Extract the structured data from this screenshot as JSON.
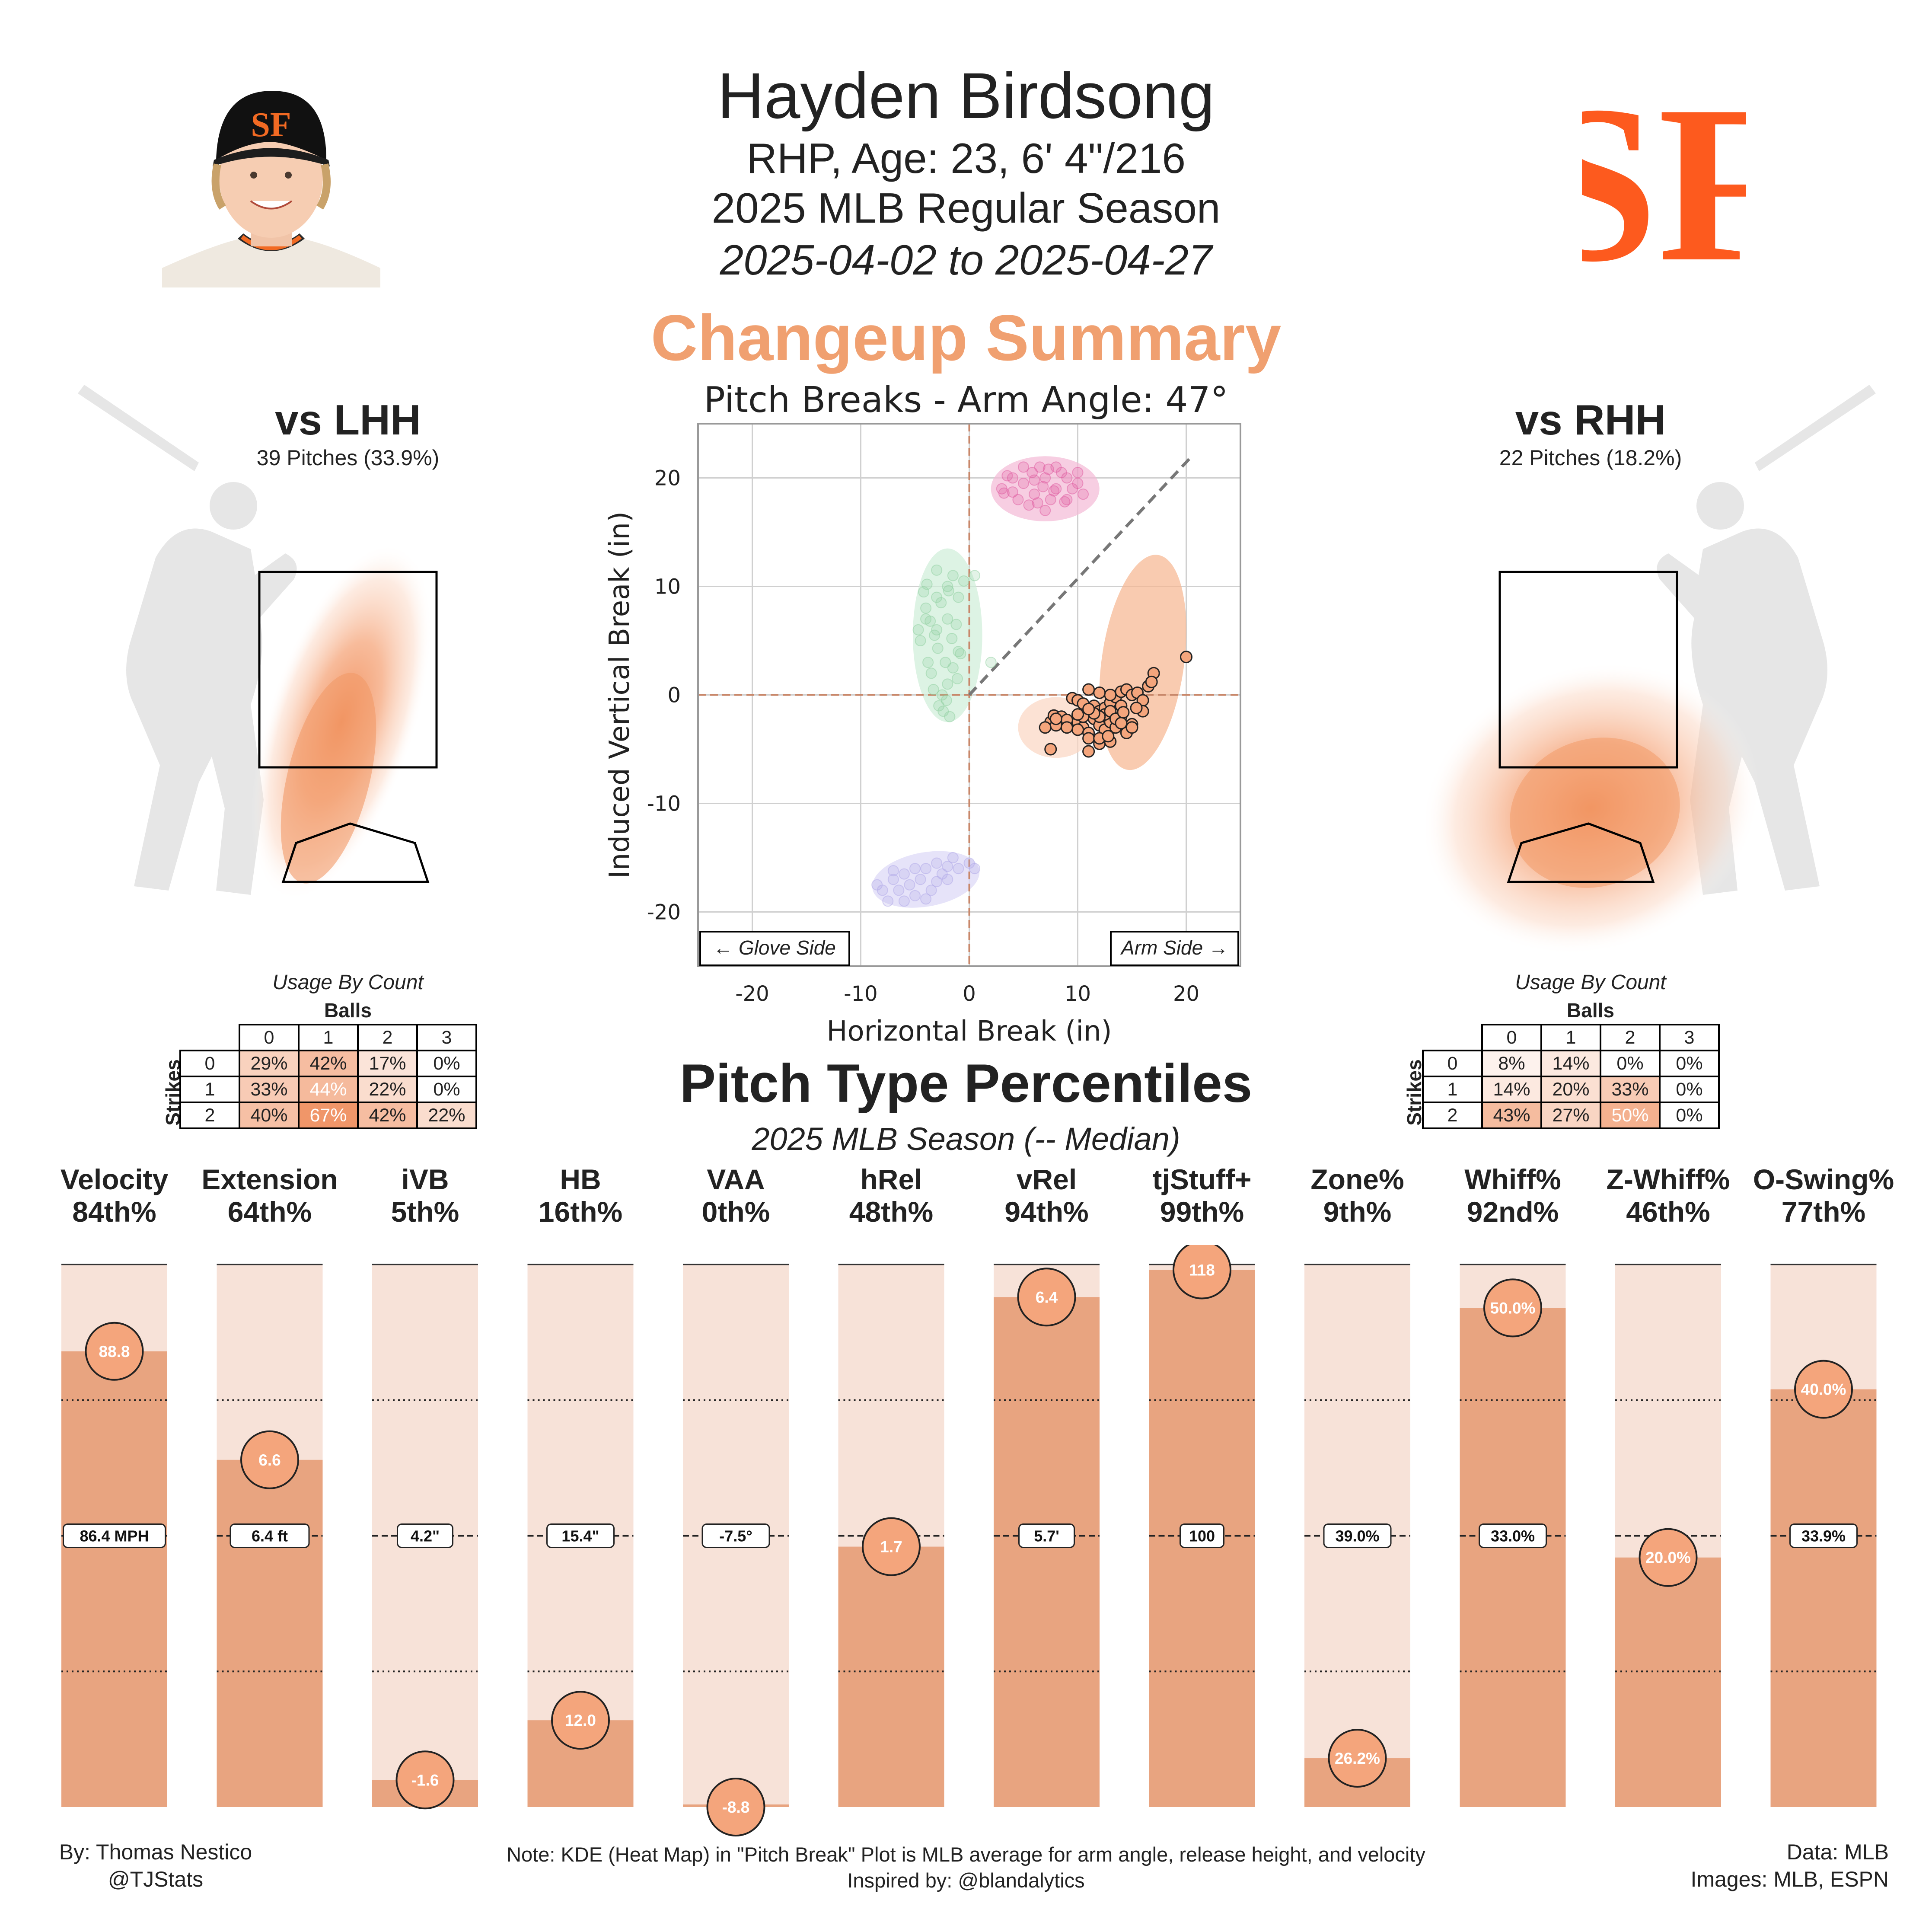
{
  "header": {
    "name": "Hayden Birdsong",
    "bio": "RHP, Age: 23, 6' 4\"/216",
    "season": "2025 MLB Regular Season",
    "date_range": "2025-04-02 to 2025-04-27",
    "team_logo_text": "SF"
  },
  "summary_title": "Changeup Summary",
  "colors": {
    "accent": "#f0a070",
    "bar_fill": "#e8a480",
    "bar_bg": "#f7e2d8",
    "marker": "#f4a57c",
    "silhouette": "#e6e6e6",
    "logo": "#fd5a1e"
  },
  "lhh": {
    "title": "vs LHH",
    "pitches": "39 Pitches (33.9%)",
    "usage_caption": "Usage By Count",
    "balls_label": "Balls",
    "strikes_label": "Strikes",
    "ball_headers": [
      "0",
      "1",
      "2",
      "3"
    ],
    "rows": [
      {
        "strikes": "0",
        "cells": [
          "29%",
          "42%",
          "17%",
          "0%"
        ],
        "vals": [
          29,
          42,
          17,
          0
        ]
      },
      {
        "strikes": "1",
        "cells": [
          "33%",
          "44%",
          "22%",
          "0%"
        ],
        "vals": [
          33,
          44,
          22,
          0
        ]
      },
      {
        "strikes": "2",
        "cells": [
          "40%",
          "67%",
          "42%",
          "22%"
        ],
        "vals": [
          40,
          67,
          42,
          22
        ]
      }
    ]
  },
  "rhh": {
    "title": "vs RHH",
    "pitches": "22 Pitches (18.2%)",
    "usage_caption": "Usage By Count",
    "balls_label": "Balls",
    "strikes_label": "Strikes",
    "ball_headers": [
      "0",
      "1",
      "2",
      "3"
    ],
    "rows": [
      {
        "strikes": "0",
        "cells": [
          "8%",
          "14%",
          "0%",
          "0%"
        ],
        "vals": [
          8,
          14,
          0,
          0
        ]
      },
      {
        "strikes": "1",
        "cells": [
          "14%",
          "20%",
          "33%",
          "0%"
        ],
        "vals": [
          14,
          20,
          33,
          0
        ]
      },
      {
        "strikes": "2",
        "cells": [
          "43%",
          "27%",
          "50%",
          "0%"
        ],
        "vals": [
          43,
          27,
          50,
          0
        ]
      }
    ]
  },
  "chart_data": [
    {
      "type": "scatter",
      "title": "Pitch Breaks - Arm Angle: 47°",
      "xlabel": "Horizontal Break (in)",
      "ylabel": "Induced Vertical Break (in)",
      "xlim": [
        -25,
        25
      ],
      "ylim": [
        -25,
        25
      ],
      "xticks": [
        -20,
        -10,
        0,
        10,
        20
      ],
      "yticks": [
        -20,
        -10,
        0,
        10,
        20
      ],
      "grid": true,
      "arm_angle_deg": 47,
      "glove_side_label": "← Glove Side",
      "arm_side_label": "Arm Side →",
      "series": [
        {
          "color": "#f4a57c",
          "highlight": true,
          "points": [
            [
              7.5,
              -2.5
            ],
            [
              8,
              -2.8
            ],
            [
              7,
              -3
            ],
            [
              7.8,
              -1.9
            ],
            [
              8.5,
              -2
            ],
            [
              9.5,
              -0.3
            ],
            [
              10,
              -0.5
            ],
            [
              10.5,
              -0.8
            ],
            [
              11,
              0.5
            ],
            [
              11.5,
              -1
            ],
            [
              12,
              -1.5
            ],
            [
              12.5,
              -1.2
            ],
            [
              13,
              -0.7
            ],
            [
              13.5,
              -0.2
            ],
            [
              14,
              0.3
            ],
            [
              14.5,
              0.5
            ],
            [
              15,
              0
            ],
            [
              15.5,
              0.2
            ],
            [
              16,
              -0.5
            ],
            [
              16.5,
              0.8
            ],
            [
              17,
              2
            ],
            [
              20,
              3.5
            ],
            [
              10,
              -2.5
            ],
            [
              10.5,
              -3
            ],
            [
              11,
              -3.5
            ],
            [
              11.5,
              -2.2
            ],
            [
              12,
              -2.8
            ],
            [
              12.5,
              -3.2
            ],
            [
              13,
              -2.5
            ],
            [
              13.5,
              -3
            ],
            [
              14,
              -2
            ],
            [
              14.5,
              -3.5
            ],
            [
              15,
              -2.7
            ],
            [
              11,
              -4
            ],
            [
              12,
              -4.5
            ],
            [
              10.5,
              -2
            ],
            [
              12.5,
              -1.8
            ],
            [
              13,
              -1.5
            ],
            [
              14,
              -1
            ],
            [
              7.5,
              -5
            ],
            [
              11,
              -5.2
            ],
            [
              12,
              -4
            ],
            [
              13,
              -4.3
            ],
            [
              12,
              -2
            ],
            [
              15,
              -3
            ],
            [
              16,
              -1.5
            ],
            [
              9,
              -2.3
            ],
            [
              11.5,
              -1.7
            ],
            [
              13.5,
              -2.2
            ],
            [
              14,
              -2.6
            ],
            [
              10,
              -3.2
            ],
            [
              12.8,
              -3.8
            ],
            [
              14.2,
              -1.6
            ],
            [
              15.4,
              -1.2
            ],
            [
              16.8,
              1.2
            ],
            [
              13,
              0
            ],
            [
              12,
              0.2
            ],
            [
              11,
              -1.3
            ],
            [
              10,
              -1.8
            ],
            [
              9,
              -3
            ],
            [
              8,
              -2.2
            ]
          ]
        },
        {
          "color": "#e05aa0",
          "highlight": false,
          "points": [
            [
              3,
              19
            ],
            [
              4,
              20
            ],
            [
              5,
              19.5
            ],
            [
              6,
              18.5
            ],
            [
              7,
              20
            ],
            [
              8,
              19
            ],
            [
              9,
              18
            ],
            [
              10,
              19.5
            ],
            [
              5.5,
              17.5
            ],
            [
              6.5,
              21
            ],
            [
              7.5,
              18
            ],
            [
              8.5,
              20.5
            ],
            [
              9.5,
              19
            ],
            [
              4.5,
              18
            ],
            [
              3.5,
              20.2
            ],
            [
              7,
              17
            ],
            [
              8,
              21
            ],
            [
              6,
              19.8
            ],
            [
              10.5,
              18.5
            ],
            [
              9,
              20
            ],
            [
              5,
              21
            ],
            [
              4,
              18.7
            ],
            [
              6.8,
              19.2
            ],
            [
              7.8,
              18.8
            ],
            [
              8.8,
              17.8
            ],
            [
              5.8,
              20.5
            ],
            [
              3.2,
              18.6
            ],
            [
              10,
              20.5
            ],
            [
              6.3,
              17.7
            ],
            [
              7.3,
              20.8
            ]
          ]
        },
        {
          "color": "#8fd0a0",
          "highlight": false,
          "points": [
            [
              -4,
              8
            ],
            [
              -3,
              6
            ],
            [
              -2,
              10
            ],
            [
              -1,
              4
            ],
            [
              -3.5,
              2
            ],
            [
              -2.5,
              0
            ],
            [
              -1.5,
              11
            ],
            [
              -4.5,
              5
            ],
            [
              -3,
              9
            ],
            [
              -2,
              7
            ],
            [
              -1,
              9
            ],
            [
              -3.8,
              3
            ],
            [
              -2.8,
              -1
            ],
            [
              -1.8,
              -2
            ],
            [
              -4.2,
              9.5
            ],
            [
              -3.2,
              5.5
            ],
            [
              -2.2,
              3
            ],
            [
              -1.2,
              6.5
            ],
            [
              -0.5,
              10.5
            ],
            [
              -3,
              11.5
            ],
            [
              -2,
              1
            ],
            [
              -4,
              7
            ],
            [
              -1.5,
              2.5
            ],
            [
              -2.6,
              8.5
            ],
            [
              -3.6,
              6.8
            ],
            [
              -0.8,
              3.8
            ],
            [
              -2.4,
              -1.5
            ],
            [
              -1.6,
              5.2
            ],
            [
              -3.3,
              0.5
            ],
            [
              0.5,
              11
            ],
            [
              -4.7,
              6
            ],
            [
              -2.9,
              4.3
            ],
            [
              -1.9,
              9.6
            ],
            [
              -3.9,
              10.2
            ],
            [
              -2.1,
              -0.5
            ],
            [
              -1.1,
              1.5
            ],
            [
              2,
              3
            ]
          ]
        },
        {
          "color": "#b0a8e8",
          "highlight": false,
          "points": [
            [
              -8,
              -18
            ],
            [
              -7,
              -17
            ],
            [
              -6,
              -16.5
            ],
            [
              -5,
              -18.5
            ],
            [
              -4,
              -16
            ],
            [
              -3,
              -15.5
            ],
            [
              -2,
              -17
            ],
            [
              -1,
              -16
            ],
            [
              0,
              -15.5
            ],
            [
              -7.5,
              -19
            ],
            [
              -6.5,
              -18
            ],
            [
              -5.5,
              -17.5
            ],
            [
              -4.5,
              -17
            ],
            [
              -3.5,
              -18
            ],
            [
              -2.5,
              -16.5
            ],
            [
              -1.5,
              -15
            ],
            [
              -6,
              -19
            ],
            [
              -5,
              -16
            ],
            [
              -8.5,
              -17.5
            ],
            [
              -4,
              -18.8
            ],
            [
              -3,
              -17.2
            ],
            [
              -2,
              -15.8
            ],
            [
              -7,
              -16.2
            ],
            [
              0.5,
              -16
            ]
          ]
        }
      ]
    },
    {
      "type": "bar",
      "title": "Pitch Type Percentiles",
      "subtitle": "2025 MLB Season (-- Median)",
      "metrics": [
        {
          "name": "Velocity",
          "percentile_label": "84th%",
          "percentile": 84,
          "value_label": "88.8",
          "median_label": "86.4 MPH"
        },
        {
          "name": "Extension",
          "percentile_label": "64th%",
          "percentile": 64,
          "value_label": "6.6",
          "median_label": "6.4 ft"
        },
        {
          "name": "iVB",
          "percentile_label": "5th%",
          "percentile": 5,
          "value_label": "-1.6",
          "median_label": "4.2\""
        },
        {
          "name": "HB",
          "percentile_label": "16th%",
          "percentile": 16,
          "value_label": "12.0",
          "median_label": "15.4\""
        },
        {
          "name": "VAA",
          "percentile_label": "0th%",
          "percentile": 0,
          "value_label": "-8.8",
          "median_label": "-7.5°"
        },
        {
          "name": "hRel",
          "percentile_label": "48th%",
          "percentile": 48,
          "value_label": "1.7",
          "median_label": ""
        },
        {
          "name": "vRel",
          "percentile_label": "94th%",
          "percentile": 94,
          "value_label": "6.4",
          "median_label": "5.7'"
        },
        {
          "name": "tjStuff+",
          "percentile_label": "99th%",
          "percentile": 99,
          "value_label": "118",
          "median_label": "100"
        },
        {
          "name": "Zone%",
          "percentile_label": "9th%",
          "percentile": 9,
          "value_label": "26.2%",
          "median_label": "39.0%"
        },
        {
          "name": "Whiff%",
          "percentile_label": "92nd%",
          "percentile": 92,
          "value_label": "50.0%",
          "median_label": "33.0%"
        },
        {
          "name": "Z-Whiff%",
          "percentile_label": "46th%",
          "percentile": 46,
          "value_label": "20.0%",
          "median_label": ""
        },
        {
          "name": "O-Swing%",
          "percentile_label": "77th%",
          "percentile": 77,
          "value_label": "40.0%",
          "median_label": "33.9%"
        }
      ]
    }
  ],
  "footer": {
    "author": "By: Thomas Nestico",
    "handle": "@TJStats",
    "note": "Note: KDE (Heat Map) in \"Pitch Break\" Plot is MLB average for arm angle, release height, and velocity",
    "inspired": "Inspired by: @blandalytics",
    "data": "Data: MLB",
    "images": "Images: MLB, ESPN"
  }
}
